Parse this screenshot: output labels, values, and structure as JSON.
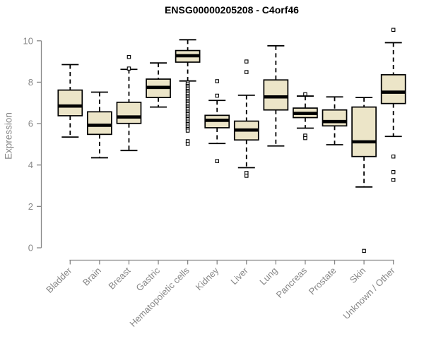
{
  "chart_data": {
    "type": "boxplot",
    "title": "ENSG00000205208 - C4orf46",
    "xlabel": "",
    "ylabel": "Expression",
    "ylim": [
      -0.3,
      10.6
    ],
    "yticks": [
      0,
      2,
      4,
      6,
      8,
      10
    ],
    "grid": false,
    "legend": false,
    "categories": [
      "Bladder",
      "Brain",
      "Breast",
      "Gastric",
      "Hematopoietic cells",
      "Kidney",
      "Liver",
      "Lung",
      "Pancreas",
      "Prostate",
      "Skin",
      "Unknown / Other"
    ],
    "boxes": [
      {
        "category": "Bladder",
        "whisker_low": 5.35,
        "q1": 6.38,
        "median": 6.85,
        "q3": 7.62,
        "whisker_high": 8.85,
        "outliers": []
      },
      {
        "category": "Brain",
        "whisker_low": 4.35,
        "q1": 5.48,
        "median": 5.92,
        "q3": 6.57,
        "whisker_high": 7.52,
        "outliers": []
      },
      {
        "category": "Breast",
        "whisker_low": 4.7,
        "q1": 6.01,
        "median": 6.32,
        "q3": 7.03,
        "whisker_high": 8.62,
        "outliers": [
          9.22,
          8.66
        ]
      },
      {
        "category": "Gastric",
        "whisker_low": 6.8,
        "q1": 7.26,
        "median": 7.75,
        "q3": 8.15,
        "whisker_high": 8.93,
        "outliers": []
      },
      {
        "category": "Hematopoietic cells",
        "whisker_low": 8.06,
        "q1": 8.97,
        "median": 9.28,
        "q3": 9.53,
        "whisker_high": 10.05,
        "outliers": [
          7.98,
          7.9,
          7.82,
          7.74,
          7.66,
          7.58,
          7.5,
          7.42,
          7.34,
          7.26,
          7.18,
          7.1,
          7.02,
          6.94,
          6.86,
          6.78,
          6.7,
          6.62,
          6.54,
          6.46,
          6.38,
          6.3,
          6.22,
          6.14,
          6.06,
          5.98,
          5.9,
          5.82,
          5.74,
          5.66,
          5.15,
          5.02
        ]
      },
      {
        "category": "Kidney",
        "whisker_low": 5.04,
        "q1": 5.8,
        "median": 6.16,
        "q3": 6.4,
        "whisker_high": 7.12,
        "outliers": [
          8.05,
          7.35,
          4.19
        ]
      },
      {
        "category": "Liver",
        "whisker_low": 3.87,
        "q1": 5.21,
        "median": 5.69,
        "q3": 6.12,
        "whisker_high": 7.37,
        "outliers": [
          9.0,
          8.49,
          3.62,
          3.48
        ]
      },
      {
        "category": "Lung",
        "whisker_low": 4.92,
        "q1": 6.66,
        "median": 7.29,
        "q3": 8.11,
        "whisker_high": 9.76,
        "outliers": []
      },
      {
        "category": "Pancreas",
        "whisker_low": 5.78,
        "q1": 6.29,
        "median": 6.49,
        "q3": 6.75,
        "whisker_high": 7.33,
        "outliers": [
          7.42,
          5.42,
          5.3
        ]
      },
      {
        "category": "Prostate",
        "whisker_low": 4.98,
        "q1": 5.89,
        "median": 6.1,
        "q3": 6.66,
        "whisker_high": 7.29,
        "outliers": []
      },
      {
        "category": "Skin",
        "whisker_low": 2.94,
        "q1": 4.41,
        "median": 5.12,
        "q3": 6.8,
        "whisker_high": 7.26,
        "outliers": [
          -0.15
        ]
      },
      {
        "category": "Unknown / Other",
        "whisker_low": 5.38,
        "q1": 6.97,
        "median": 7.52,
        "q3": 8.36,
        "whisker_high": 9.91,
        "outliers": [
          10.53,
          4.41,
          3.66,
          3.28
        ]
      }
    ],
    "style": {
      "box_fill": "#ece5c8",
      "box_border": "#000000",
      "median_color": "#000000",
      "whisker_color": "#000000",
      "outlier_color": "#000000",
      "axis_color": "#878787",
      "tick_label_color": "#878787",
      "title_color": "#000000",
      "background": "#ffffff"
    }
  }
}
